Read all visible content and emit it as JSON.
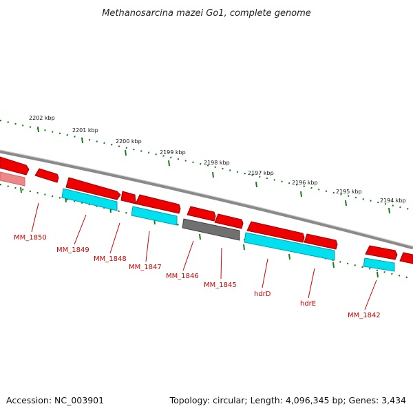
{
  "title": "Methanosarcina mazei Go1, complete genome",
  "accession_label": "Accession: NC_003901",
  "topology_label": "Topology: circular; Length: 4,096,345 bp; Genes: 3,434",
  "colors": {
    "backbone": "#8a8a8a",
    "tick": "#1a7a1a",
    "gene_red": "#ee0000",
    "gene_cyan": "#00e0ee",
    "gene_gray": "#707070",
    "gene_pink": "#ee8888",
    "label_red": "#cc0000"
  },
  "kbp_markers": [
    "2202 kbp",
    "2201 kbp",
    "2200 kbp",
    "2199 kbp",
    "2198 kbp",
    "2197 kbp",
    "2196 kbp",
    "2195 kbp",
    "2194 kbp"
  ],
  "gene_labels": [
    "MM_1850",
    "MM_1849",
    "MM_1848",
    "MM_1847",
    "MM_1846",
    "MM_1845",
    "hdrD",
    "hdrE",
    "MM_1842"
  ]
}
